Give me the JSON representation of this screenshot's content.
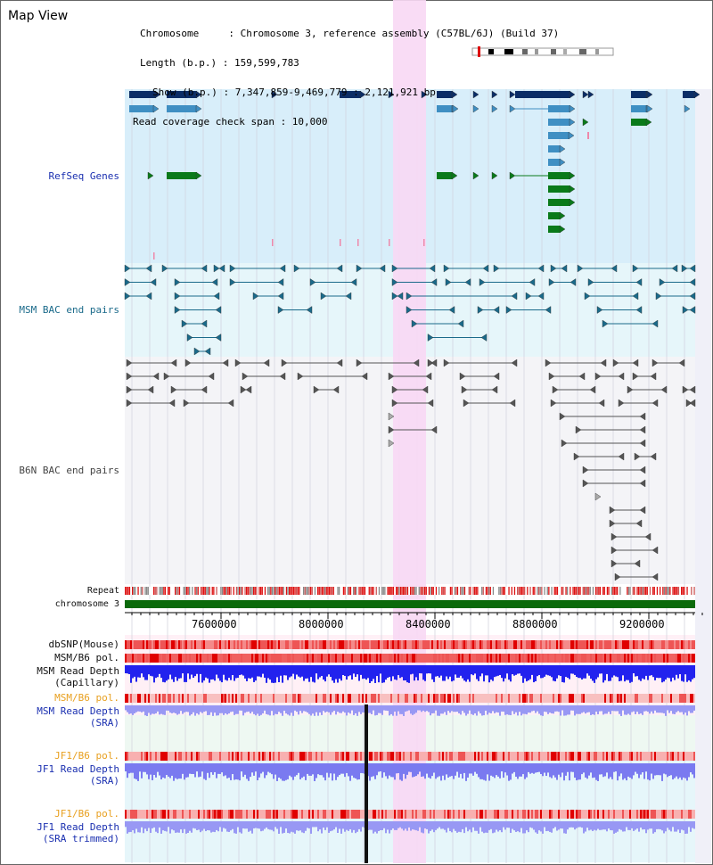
{
  "view_title": "Map View",
  "info": {
    "chromosome": "Chromosome     : Chromosome 3, reference assembly (C57BL/6J) (Build 37)",
    "length": "Length (b.p.) : 159,599,783",
    "show": "Show (b.p.) : 7,347,859-9,469,779 : 2,121,921 bp",
    "coverage": "Read coverage check span : 10,000"
  },
  "colors": {
    "refseq_bg": "#d8eefa",
    "msm_bg": "#e6f6fa",
    "b6n_bg": "#f4f4f7",
    "highlight": "#f8d8f4",
    "gene_dark": "#0b2d66",
    "gene_mid": "#3f8fc3",
    "gene_green": "#0a7a1a",
    "msm_pair": "#1a6a8a",
    "b6n_pair": "#555555",
    "chrom": "#0a6a0a",
    "snp": "#ee3030",
    "depth_blue": "#2222ee",
    "depth_light": "#9898f4"
  },
  "tracks": {
    "refseq": "RefSeq Genes",
    "msm_bac": "MSM BAC end pairs",
    "b6n_bac": "B6N BAC end pairs",
    "repeat": "Repeat",
    "chromosome": "chromosome 3",
    "dbsnp": "dbSNP(Mouse)",
    "msm_pol1": "MSM/B6 pol.",
    "msm_depth_cap_1": "MSM Read Depth",
    "msm_depth_cap_2": "(Capillary)",
    "msm_pol2": "MSM/B6 pol.",
    "msm_depth_sra_1": "MSM Read Depth",
    "msm_depth_sra_2": "(SRA)",
    "jf1_pol1": "JF1/B6 pol.",
    "jf1_depth_sra_1": "JF1 Read Depth",
    "jf1_depth_sra_2": "(SRA)",
    "jf1_pol2": "JF1/B6 pol.",
    "jf1_depth_trim_1": "JF1 Read Depth",
    "jf1_depth_trim_2": "(SRA trimmed)"
  },
  "ruler": {
    "ticks": [
      "7600000",
      "8000000",
      "8400000",
      "8800000",
      "9200000"
    ]
  }
}
